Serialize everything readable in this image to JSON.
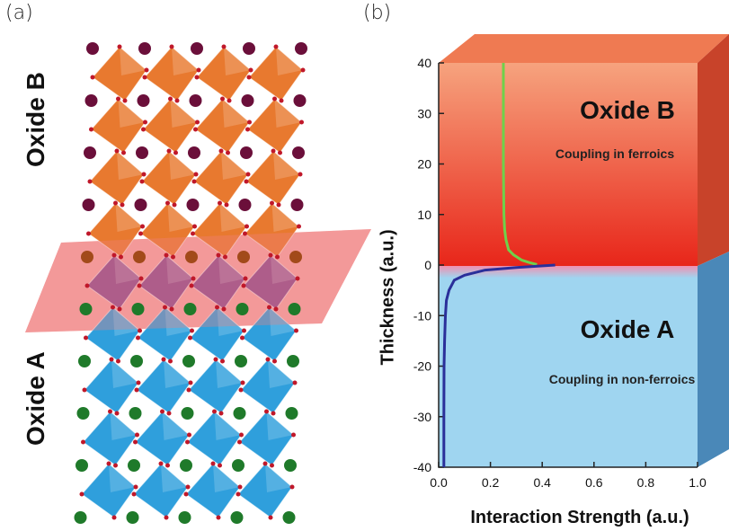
{
  "panel_a": {
    "label": "(a)",
    "top_layer_label": "Oxide B",
    "bottom_layer_label": "Oxide A",
    "colors": {
      "top_octahedra": "#e8792f",
      "interface_octahedra": "#8a4a8f",
      "bottom_octahedra": "#2f9fdc",
      "top_spheres": "#6b0f3a",
      "interface_spheres": "#a24a1a",
      "bottom_spheres": "#1f7a2a",
      "interface_plane": "#f08080"
    }
  },
  "panel_b": {
    "label": "(b)",
    "region_top_name": "Oxide B",
    "region_top_caption": "Coupling in ferroics",
    "region_bottom_name": "Oxide A",
    "region_bottom_caption": "Coupling in non-ferroics",
    "colors": {
      "top_region_light": "#f6a37e",
      "top_region_dark": "#e8261a",
      "bottom_region": "#9fd5f0",
      "green_curve": "#6fd14a",
      "blue_curve": "#2a2f9a"
    }
  },
  "chart_data": {
    "type": "line",
    "xlabel": "Interaction Strength (a.u.)",
    "ylabel": "Thickness (a.u.)",
    "xlim": [
      0.0,
      1.0
    ],
    "ylim": [
      -40,
      40
    ],
    "x_ticks": [
      "0.0",
      "0.2",
      "0.4",
      "0.6",
      "0.8",
      "1.0"
    ],
    "y_ticks": [
      "-40",
      "-30",
      "-20",
      "-10",
      "0",
      "10",
      "20",
      "30",
      "40"
    ],
    "series": [
      {
        "color": "#6fd14a",
        "x": [
          0.25,
          0.25,
          0.25,
          0.251,
          0.252,
          0.255,
          0.26,
          0.27,
          0.29,
          0.32,
          0.35,
          0.38
        ],
        "y": [
          40,
          30,
          20,
          15,
          10,
          7,
          5,
          3,
          2,
          1,
          0.5,
          0.1
        ]
      },
      {
        "color": "#2a2f9a",
        "x": [
          0.02,
          0.02,
          0.021,
          0.023,
          0.026,
          0.03,
          0.04,
          0.06,
          0.1,
          0.18,
          0.3,
          0.45
        ],
        "y": [
          -40,
          -30,
          -20,
          -15,
          -10,
          -7,
          -5,
          -3,
          -2,
          -1,
          -0.5,
          0
        ]
      }
    ]
  }
}
